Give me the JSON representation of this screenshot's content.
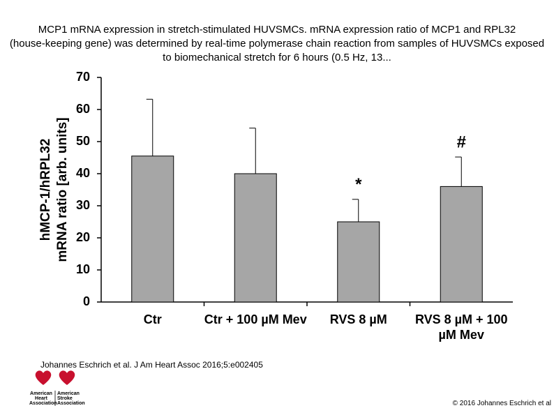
{
  "chart_data": {
    "type": "bar",
    "title": "MCP1 mRNA expression in stretch‑stimulated HUVSMCs. mRNA expression ratio of MCP1 and RPL32 (house‑keeping gene) was determined by real‑time polymerase chain reaction from samples of HUVSMCs exposed to biomechanical stretch for 6 hours (0.5 Hz, 13...",
    "ylabel": [
      "hMCP-1/hRPL32",
      "mRNA ratio [arb. units]"
    ],
    "categories": [
      "Ctr",
      "Ctr + 100 µM Mev",
      "RVS 8 µM",
      "RVS 8 µM + 100 µM Mev"
    ],
    "values": [
      45.5,
      40,
      25,
      36
    ],
    "errors": [
      17.7,
      14.2,
      7,
      9.2
    ],
    "color": "#a6a6a6",
    "ylim": [
      0,
      70
    ],
    "yticks": [
      0,
      10,
      20,
      30,
      40,
      50,
      60,
      70
    ],
    "grid": false,
    "annotations": [
      {
        "text": "*",
        "index": 2
      },
      {
        "text": "#",
        "index": 3
      }
    ]
  },
  "citation": "Johannes Eschrich et al. J Am Heart Assoc 2016;5:e002405",
  "copyright": "© 2016 Johannes Eschrich et al",
  "logo": [
    "American",
    "Heart",
    "Association",
    "American",
    "Stroke",
    "Association"
  ]
}
